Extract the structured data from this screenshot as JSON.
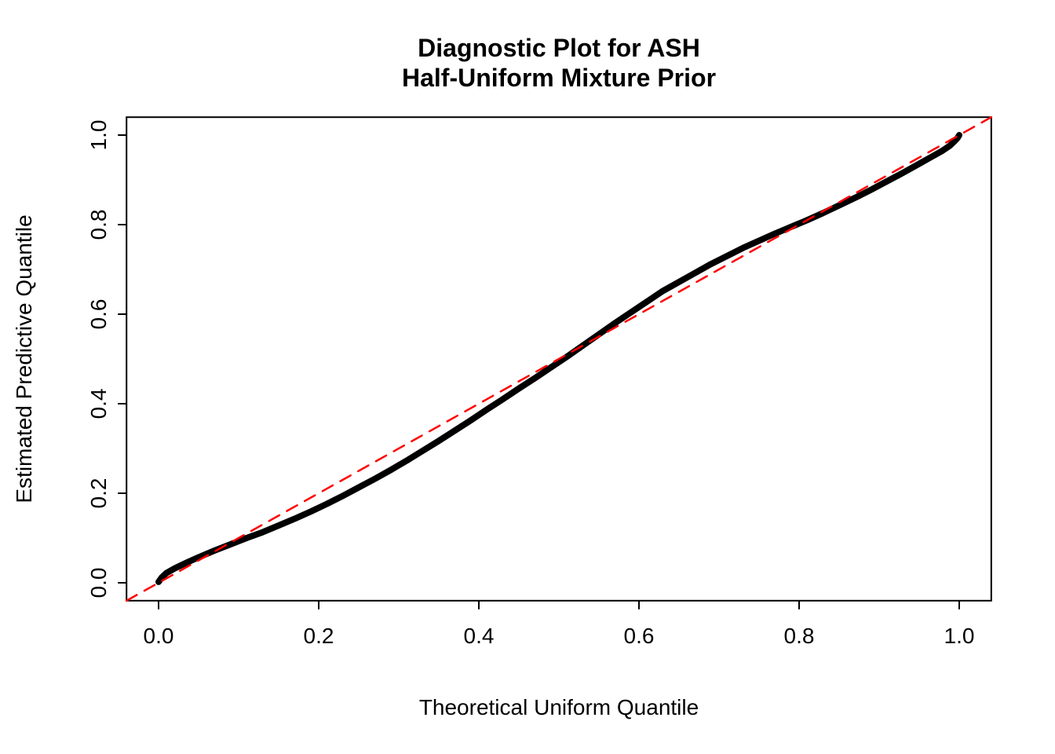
{
  "title": {
    "line1": "Diagnostic Plot for ASH",
    "line2": "Half-Uniform Mixture Prior"
  },
  "chart_data": {
    "type": "line",
    "title": "Diagnostic Plot for ASH\nHalf-Uniform Mixture Prior",
    "xlabel": "Theoretical Uniform Quantile",
    "ylabel": "Estimated Predictive Quantile",
    "xlim": [
      -0.04,
      1.04
    ],
    "ylim": [
      -0.04,
      1.04
    ],
    "x_ticks": [
      0.0,
      0.2,
      0.4,
      0.6,
      0.8,
      1.0
    ],
    "x_tick_labels": [
      "0.0",
      "0.2",
      "0.4",
      "0.6",
      "0.8",
      "1.0"
    ],
    "y_ticks": [
      0.0,
      0.2,
      0.4,
      0.6,
      0.8,
      1.0
    ],
    "y_tick_labels": [
      "0.0",
      "0.2",
      "0.4",
      "0.6",
      "0.8",
      "1.0"
    ],
    "grid": false,
    "legend": null,
    "series": [
      {
        "name": "estimated-predictive-quantiles",
        "type": "line",
        "color": "#000000",
        "style": "solid",
        "linewidth": 8,
        "points": [
          [
            0.0,
            0.002
          ],
          [
            0.004,
            0.012
          ],
          [
            0.01,
            0.022
          ],
          [
            0.02,
            0.032
          ],
          [
            0.035,
            0.045
          ],
          [
            0.05,
            0.057
          ],
          [
            0.07,
            0.072
          ],
          [
            0.09,
            0.086
          ],
          [
            0.11,
            0.1
          ],
          [
            0.13,
            0.113
          ],
          [
            0.15,
            0.128
          ],
          [
            0.17,
            0.143
          ],
          [
            0.19,
            0.159
          ],
          [
            0.21,
            0.176
          ],
          [
            0.23,
            0.194
          ],
          [
            0.25,
            0.213
          ],
          [
            0.27,
            0.232
          ],
          [
            0.29,
            0.252
          ],
          [
            0.31,
            0.273
          ],
          [
            0.33,
            0.295
          ],
          [
            0.35,
            0.317
          ],
          [
            0.37,
            0.34
          ],
          [
            0.39,
            0.363
          ],
          [
            0.41,
            0.387
          ],
          [
            0.43,
            0.41
          ],
          [
            0.45,
            0.434
          ],
          [
            0.47,
            0.457
          ],
          [
            0.49,
            0.481
          ],
          [
            0.51,
            0.505
          ],
          [
            0.53,
            0.53
          ],
          [
            0.55,
            0.555
          ],
          [
            0.57,
            0.58
          ],
          [
            0.59,
            0.604
          ],
          [
            0.61,
            0.628
          ],
          [
            0.63,
            0.652
          ],
          [
            0.65,
            0.672
          ],
          [
            0.67,
            0.692
          ],
          [
            0.69,
            0.712
          ],
          [
            0.71,
            0.73
          ],
          [
            0.73,
            0.748
          ],
          [
            0.75,
            0.764
          ],
          [
            0.77,
            0.78
          ],
          [
            0.79,
            0.795
          ],
          [
            0.81,
            0.81
          ],
          [
            0.83,
            0.826
          ],
          [
            0.85,
            0.843
          ],
          [
            0.87,
            0.86
          ],
          [
            0.89,
            0.878
          ],
          [
            0.91,
            0.897
          ],
          [
            0.93,
            0.916
          ],
          [
            0.95,
            0.936
          ],
          [
            0.965,
            0.951
          ],
          [
            0.978,
            0.964
          ],
          [
            0.988,
            0.976
          ],
          [
            0.994,
            0.986
          ],
          [
            0.998,
            0.994
          ],
          [
            1.0,
            1.0
          ]
        ]
      },
      {
        "name": "reference-diagonal",
        "type": "line",
        "color": "#FF0000",
        "style": "dashed",
        "linewidth": 2.5,
        "points": [
          [
            -0.04,
            -0.04
          ],
          [
            1.04,
            1.04
          ]
        ]
      }
    ]
  }
}
